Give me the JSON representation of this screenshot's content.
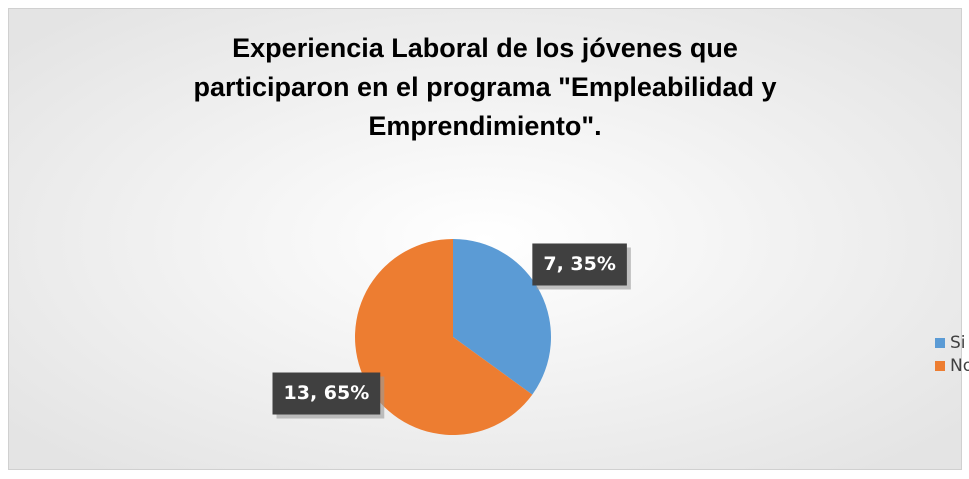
{
  "chart_data": {
    "type": "pie",
    "title": [
      "Experiencia Laboral de los jóvenes que",
      "participaron en el programa \"Empleabilidad y",
      "Emprendimiento\"."
    ],
    "categories": [
      "Si",
      "No"
    ],
    "values": [
      7,
      13
    ],
    "value_labels": [
      "7, 35%",
      "13, 65%"
    ],
    "colors": [
      "#5b9bd5",
      "#ed7d31"
    ],
    "legend": "right"
  }
}
